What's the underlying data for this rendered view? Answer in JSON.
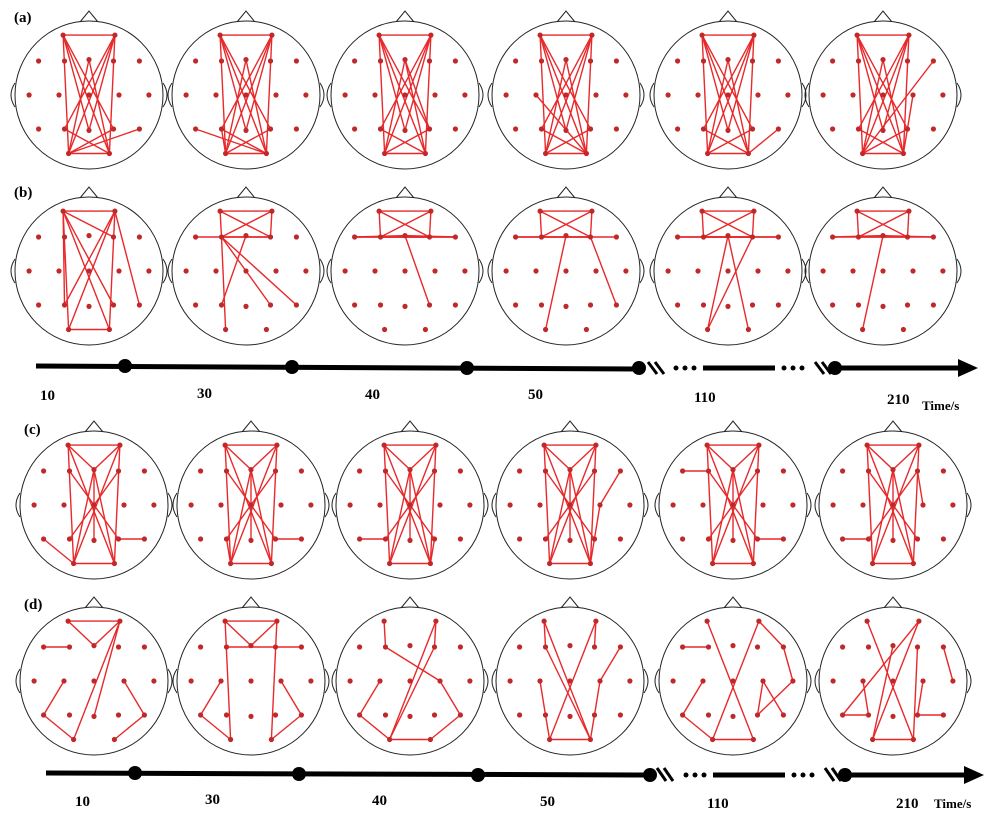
{
  "panels": [
    {
      "label": "(a)",
      "pattern": "long-range-fronto-parietal"
    },
    {
      "label": "(b)",
      "pattern": "frontal-cluster"
    },
    {
      "label": "(c)",
      "pattern": "cross-hemispheric"
    },
    {
      "label": "(d)",
      "pattern": "sparse-lateral"
    }
  ],
  "timeline_top": {
    "ticks": [
      "10",
      "30",
      "40",
      "50",
      "110",
      "210"
    ],
    "unit": "Time/s"
  },
  "timeline_bottom": {
    "ticks": [
      "10",
      "30",
      "40",
      "50",
      "110",
      "210"
    ],
    "unit": "Time/s"
  },
  "colors": {
    "edge": "#e8292b",
    "electrode": "#c0282a",
    "head_outline": "#222222",
    "axis": "#000000"
  }
}
